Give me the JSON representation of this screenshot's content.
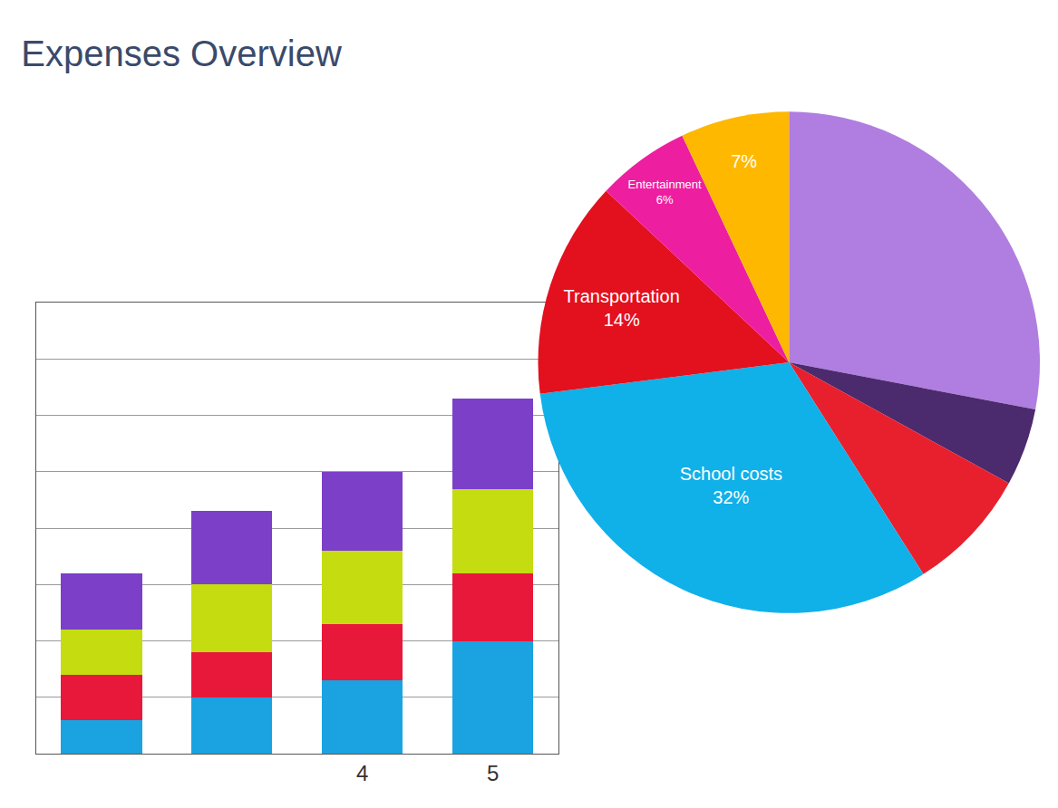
{
  "chart_data": [
    {
      "type": "bar",
      "title": "Expenses Overview",
      "categories": [
        null,
        null,
        "4",
        "5"
      ],
      "stacked": true,
      "grid": true,
      "tick_labels": "x",
      "ylim": [
        0,
        8
      ],
      "yticks": [
        0,
        1,
        2,
        3,
        4,
        5,
        6,
        7,
        8
      ],
      "series": [
        {
          "color": "#1aa3e0",
          "values": [
            0.6,
            1.0,
            1.3,
            2.0
          ]
        },
        {
          "color": "#e8183a",
          "values": [
            0.8,
            0.8,
            1.0,
            1.2
          ]
        },
        {
          "color": "#c4dc10",
          "values": [
            0.8,
            1.2,
            1.3,
            1.5
          ]
        },
        {
          "color": "#7b3fc8",
          "values": [
            1.0,
            1.3,
            1.4,
            1.6
          ]
        }
      ]
    },
    {
      "type": "pie",
      "data_labels": true,
      "categories": [
        null,
        null,
        null,
        "School costs",
        "Transportation",
        "Entertainment",
        null
      ],
      "values": [
        28,
        5,
        8,
        32,
        14,
        6,
        7
      ],
      "value_labels": [
        null,
        null,
        null,
        "32%",
        "14%",
        "6%",
        "7%"
      ],
      "colors": [
        "#b07ee0",
        "#4b2a6e",
        "#e8202e",
        "#10b0e8",
        "#e3101e",
        "#ee1ea0",
        "#ffb800"
      ]
    }
  ]
}
